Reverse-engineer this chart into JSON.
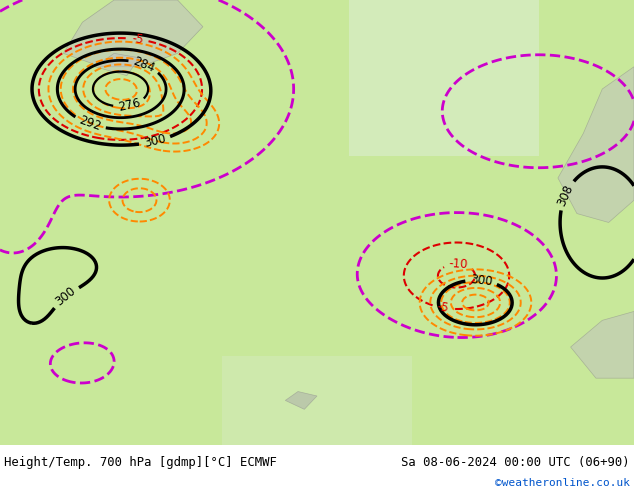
{
  "title_left": "Height/Temp. 700 hPa [gdmp][°C] ECMWF",
  "title_right": "Sa 08-06-2024 00:00 UTC (06+90)",
  "credit": "©weatheronline.co.uk",
  "credit_color": "#0055cc",
  "background_color": "#c8e89a",
  "height_contour_color": "#000000",
  "temp_neg_color": "#dd0000",
  "temp_zero_color": "#cc00cc",
  "orange_color": "#ff8800",
  "fig_width": 6.34,
  "fig_height": 4.9,
  "dpi": 100
}
